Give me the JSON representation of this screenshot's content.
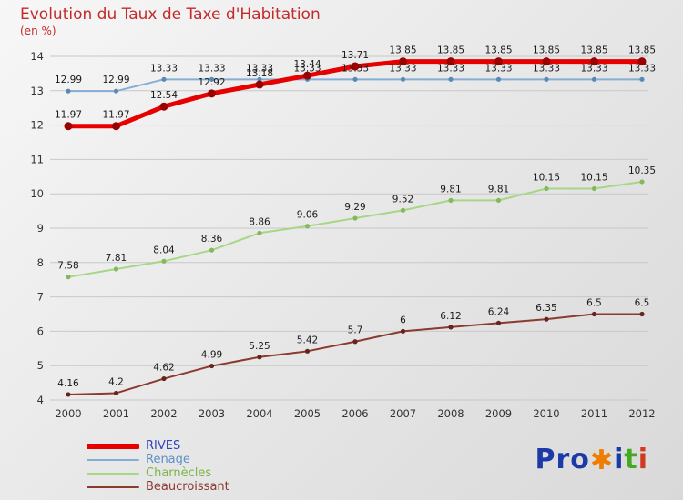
{
  "title": "Evolution du Taux de Taxe d'Habitation",
  "subtitle": "(en %)",
  "chart_data": {
    "type": "line",
    "x": [
      2000,
      2001,
      2002,
      2003,
      2004,
      2005,
      2006,
      2007,
      2008,
      2009,
      2010,
      2011,
      2012
    ],
    "series": [
      {
        "name": "RIVES",
        "color": "#e60000",
        "marker_color": "#990000",
        "label_color": "#3344bb",
        "line_width": 5,
        "values": [
          11.97,
          11.97,
          12.54,
          12.92,
          13.18,
          13.44,
          13.71,
          13.85,
          13.85,
          13.85,
          13.85,
          13.85,
          13.85
        ]
      },
      {
        "name": "Renage",
        "color": "#85aed4",
        "marker_color": "#5b88b4",
        "label_color": "#5b8fc9",
        "line_width": 2,
        "values": [
          12.99,
          12.99,
          13.33,
          13.33,
          13.33,
          13.33,
          13.33,
          13.33,
          13.33,
          13.33,
          13.33,
          13.33,
          13.33
        ]
      },
      {
        "name": "Charnècles",
        "color": "#a6d785",
        "marker_color": "#86b65e",
        "label_color": "#7ab648",
        "line_width": 2,
        "values": [
          7.58,
          7.81,
          8.04,
          8.36,
          8.86,
          9.06,
          9.29,
          9.52,
          9.81,
          9.81,
          10.15,
          10.15,
          10.35
        ]
      },
      {
        "name": "Beaucroissant",
        "color": "#8b3a2e",
        "marker_color": "#66241e",
        "label_color": "#8a3a32",
        "line_width": 2,
        "values": [
          4.16,
          4.2,
          4.62,
          4.99,
          5.25,
          5.42,
          5.7,
          6,
          6.12,
          6.24,
          6.35,
          6.5,
          6.5
        ]
      }
    ],
    "ylim": [
      4,
      14
    ],
    "yticks": [
      4,
      5,
      6,
      7,
      8,
      9,
      10,
      11,
      12,
      13,
      14
    ],
    "grid": true,
    "legend_position": "bottom-left",
    "axis_color": "#333333",
    "grid_color": "#c8c8c8",
    "value_label_color": "#1a1a1a"
  },
  "logo": {
    "parts": [
      {
        "text": "Pro",
        "color": "#1b3aa8"
      },
      {
        "text": "✱",
        "color": "#ef7d00"
      },
      {
        "text": "i",
        "color": "#1b3aa8"
      },
      {
        "text": "t",
        "color": "#44aa22"
      },
      {
        "text": "i",
        "color": "#d03a1e"
      }
    ]
  }
}
